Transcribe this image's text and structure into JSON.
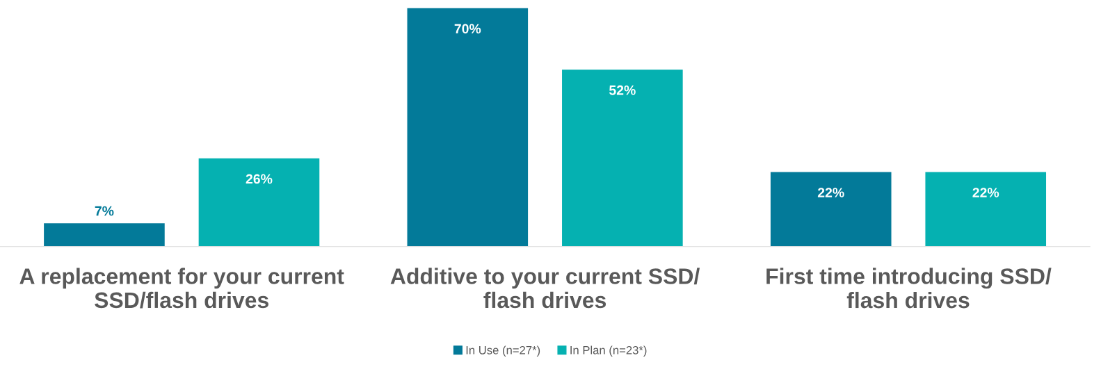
{
  "chart_data": {
    "type": "bar",
    "categories": [
      "A replacement for your current\nSSD/flash drives",
      "Additive to your current SSD/\nflash drives",
      "First time introducing SSD/\nflash drives"
    ],
    "series": [
      {
        "name": "In Use (n=27*)",
        "color": "#037a99",
        "values": [
          7,
          70,
          22
        ],
        "value_labels": [
          "7%",
          "70%",
          "22%"
        ]
      },
      {
        "name": "In Plan (n=23*)",
        "color": "#05b1b1",
        "values": [
          26,
          52,
          22
        ],
        "value_labels": [
          "26%",
          "52%",
          "22%"
        ]
      }
    ],
    "grid": false,
    "legend": "bottom"
  }
}
